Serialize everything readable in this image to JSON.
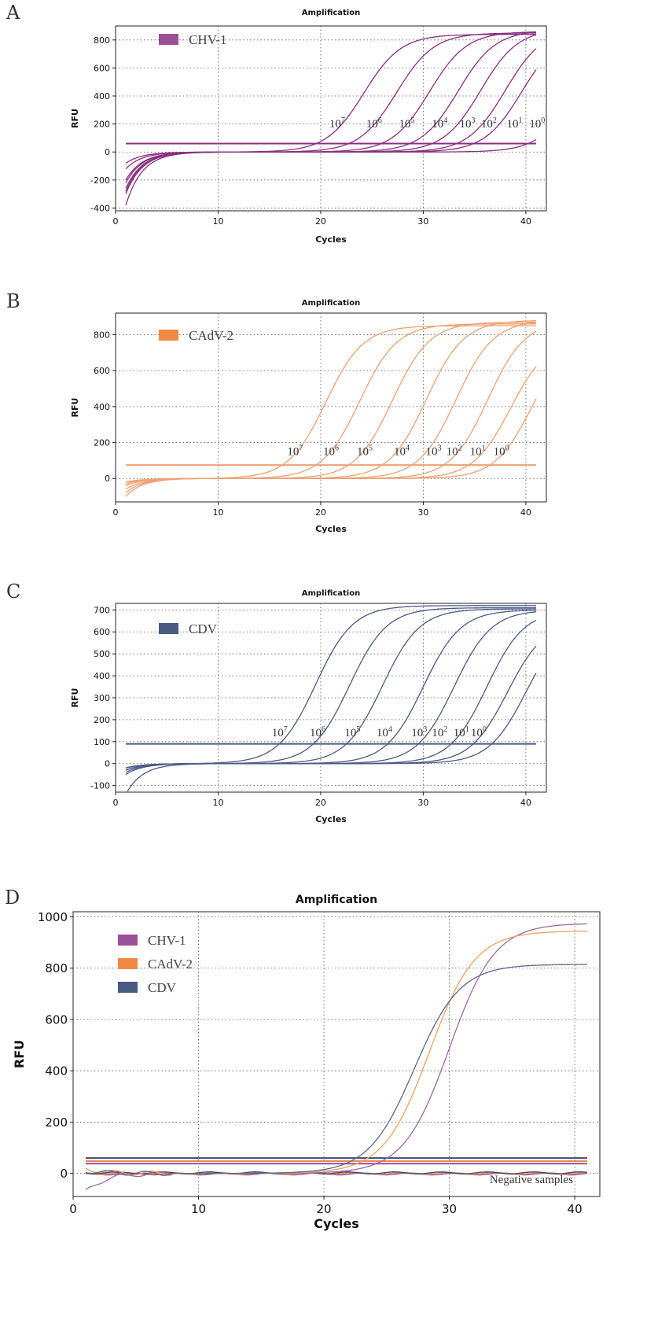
{
  "chart_data": [
    {
      "panel": "A",
      "type": "line",
      "title": "Amplification",
      "xlabel": "Cycles",
      "ylabel": "RFU",
      "xlim": [
        0,
        42
      ],
      "ylim": [
        -420,
        900
      ],
      "xticks": [
        0,
        10,
        20,
        30,
        40
      ],
      "yticks": [
        -400,
        -200,
        0,
        200,
        400,
        600,
        800
      ],
      "grid": true,
      "legend": [
        {
          "label": "CHV-1",
          "color": "#9b4f96"
        }
      ],
      "legend_position": "top-left",
      "threshold": 60,
      "curve_color": "#8a2f80",
      "series": [
        {
          "label_base": "10",
          "label_exp": "7",
          "ct": 24.2,
          "plateau": 840,
          "start": -120
        },
        {
          "label_base": "10",
          "label_exp": "6",
          "ct": 27.4,
          "plateau": 850,
          "start": -200
        },
        {
          "label_base": "10",
          "label_exp": "5",
          "ct": 30.6,
          "plateau": 860,
          "start": -260
        },
        {
          "label_base": "10",
          "label_exp": "4",
          "ct": 33.4,
          "plateau": 870,
          "start": -300
        },
        {
          "label_base": "10",
          "label_exp": "3",
          "ct": 35.6,
          "plateau": 880,
          "start": -220
        },
        {
          "label_base": "10",
          "label_exp": "2",
          "ct": 38.0,
          "plateau": 880,
          "start": -380
        },
        {
          "label_base": "10",
          "label_exp": "1",
          "ct": 39.6,
          "plateau": 860,
          "start": -280
        },
        {
          "label_base": "10",
          "label_exp": "0",
          "ct": 44.5,
          "plateau": 700,
          "start": -80
        }
      ],
      "curve_label_y": 175,
      "curve_label_x": [
        21.6,
        25.2,
        28.4,
        31.6,
        34.3,
        36.4,
        38.9,
        41.1
      ]
    },
    {
      "panel": "B",
      "type": "line",
      "title": "Amplification",
      "xlabel": "Cycles",
      "ylabel": "RFU",
      "xlim": [
        0,
        42
      ],
      "ylim": [
        -130,
        920
      ],
      "xticks": [
        0,
        10,
        20,
        30,
        40
      ],
      "yticks": [
        0,
        200,
        400,
        600,
        800
      ],
      "grid": true,
      "legend": [
        {
          "label": "CAdV-2",
          "color": "#f08a42"
        }
      ],
      "legend_position": "top-left",
      "threshold": 75,
      "curve_color": "#f0a070",
      "series": [
        {
          "label_base": "10",
          "label_exp": "7",
          "ct": 20.5,
          "plateau": 850,
          "start": -100
        },
        {
          "label_base": "10",
          "label_exp": "6",
          "ct": 23.8,
          "plateau": 860,
          "start": -80
        },
        {
          "label_base": "10",
          "label_exp": "5",
          "ct": 27.0,
          "plateau": 870,
          "start": -60
        },
        {
          "label_base": "10",
          "label_exp": "4",
          "ct": 30.3,
          "plateau": 880,
          "start": -40
        },
        {
          "label_base": "10",
          "label_exp": "3",
          "ct": 33.2,
          "plateau": 880,
          "start": -30
        },
        {
          "label_base": "10",
          "label_exp": "2",
          "ct": 36.3,
          "plateau": 880,
          "start": -20
        },
        {
          "label_base": "10",
          "label_exp": "1",
          "ct": 38.5,
          "plateau": 780,
          "start": -20
        },
        {
          "label_base": "10",
          "label_exp": "0",
          "ct": 40.6,
          "plateau": 800,
          "start": -20
        }
      ],
      "curve_label_y": 130,
      "curve_label_x": [
        17.5,
        21.0,
        24.3,
        27.9,
        31.0,
        33.0,
        35.3,
        37.6
      ]
    },
    {
      "panel": "C",
      "type": "line",
      "title": "Amplification",
      "xlabel": "Cycles",
      "ylabel": "RFU",
      "xlim": [
        0,
        42
      ],
      "ylim": [
        -130,
        730
      ],
      "xticks": [
        0,
        10,
        20,
        30,
        40
      ],
      "yticks": [
        -100,
        0,
        100,
        200,
        300,
        400,
        500,
        600,
        700
      ],
      "grid": true,
      "legend": [
        {
          "label": "CDV",
          "color": "#4a5b82"
        }
      ],
      "legend_position": "top-left",
      "threshold": 90,
      "curve_color": "#4b5a86",
      "series": [
        {
          "label_base": "10",
          "label_exp": "7",
          "ct": 19.5,
          "plateau": 720,
          "start": -50
        },
        {
          "label_base": "10",
          "label_exp": "6",
          "ct": 22.8,
          "plateau": 710,
          "start": -40
        },
        {
          "label_base": "10",
          "label_exp": "5",
          "ct": 26.0,
          "plateau": 705,
          "start": -30
        },
        {
          "label_base": "10",
          "label_exp": "4",
          "ct": 30.0,
          "plateau": 700,
          "start": -20
        },
        {
          "label_base": "10",
          "label_exp": "3",
          "ct": 33.0,
          "plateau": 700,
          "start": -140
        },
        {
          "label_base": "10",
          "label_exp": "2",
          "ct": 36.2,
          "plateau": 700,
          "start": -30
        },
        {
          "label_base": "10",
          "label_exp": "1",
          "ct": 38.2,
          "plateau": 650,
          "start": -20
        },
        {
          "label_base": "10",
          "label_exp": "0",
          "ct": 40.0,
          "plateau": 650,
          "start": -20
        }
      ],
      "curve_label_y": 125,
      "curve_label_x": [
        16.0,
        19.7,
        23.1,
        26.2,
        29.6,
        31.6,
        33.7,
        35.4
      ]
    },
    {
      "panel": "D",
      "type": "line",
      "title": "Amplification",
      "xlabel": "Cycles",
      "ylabel": "RFU",
      "xlim": [
        0,
        42
      ],
      "ylim": [
        -90,
        1020
      ],
      "xticks": [
        0,
        10,
        20,
        30,
        40
      ],
      "yticks": [
        0,
        200,
        400,
        600,
        800,
        1000
      ],
      "grid": true,
      "legend": [
        {
          "label": "CHV-1",
          "color": "#9b4f96"
        },
        {
          "label": "CAdV-2",
          "color": "#f08a42"
        },
        {
          "label": "CDV",
          "color": "#4a5b82"
        }
      ],
      "legend_position": "top-left",
      "thresholds": [
        {
          "value": 60,
          "color": "#3f4a70"
        },
        {
          "value": 48,
          "color": "#e88a50"
        },
        {
          "value": 38,
          "color": "#9b4f96"
        }
      ],
      "series": [
        {
          "name": "CHV-1",
          "color": "#9b6aa6",
          "ct": 30.0,
          "plateau": 975,
          "start": -70
        },
        {
          "name": "CAdV-2",
          "color": "#f0a060",
          "ct": 28.4,
          "plateau": 945,
          "start": 20
        },
        {
          "name": "CDV",
          "color": "#5a6790",
          "ct": 27.2,
          "plateau": 815,
          "start": 10
        }
      ],
      "annotation": "Negative samples"
    }
  ]
}
